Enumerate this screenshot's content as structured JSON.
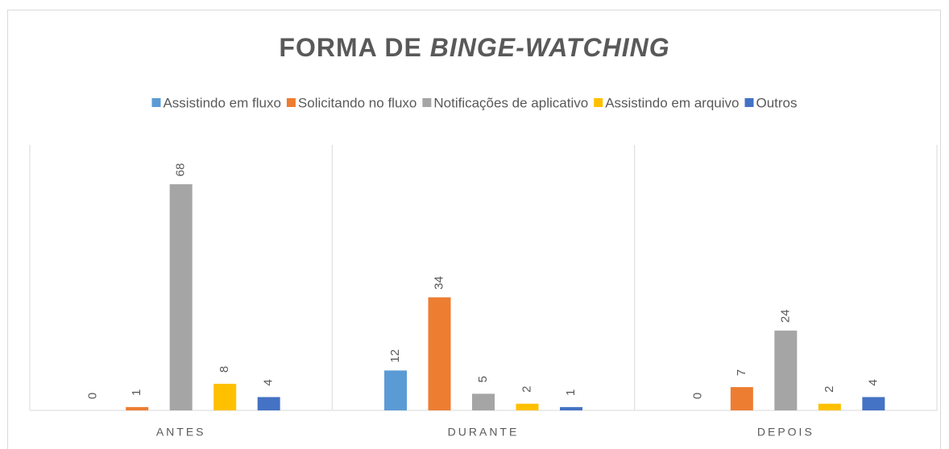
{
  "chart_data": {
    "type": "bar",
    "title": "FORMA DE",
    "title_emphasis": "BINGE-WATCHING",
    "categories": [
      "ANTES",
      "DURANTE",
      "DEPOIS"
    ],
    "series": [
      {
        "name": "Assistindo em fluxo",
        "color": "#5b9bd5",
        "values": [
          0,
          12,
          0
        ]
      },
      {
        "name": "Solicitando no fluxo",
        "color": "#ed7d31",
        "values": [
          1,
          34,
          7
        ]
      },
      {
        "name": "Notificações de aplicativo",
        "color": "#a5a5a5",
        "values": [
          68,
          5,
          24
        ]
      },
      {
        "name": "Assistindo em arquivo",
        "color": "#ffc000",
        "values": [
          8,
          2,
          2
        ]
      },
      {
        "name": "Outros",
        "color": "#4472c4",
        "values": [
          4,
          1,
          4
        ]
      }
    ],
    "legend": "top"
  }
}
